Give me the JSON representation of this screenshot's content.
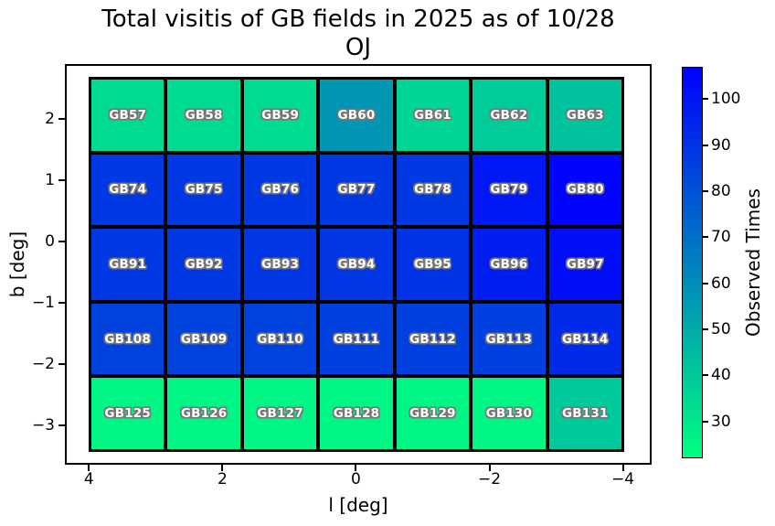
{
  "chart_data": {
    "type": "heatmap",
    "title_line1": "Total visitis of GB fields in 2025 as of 10/28",
    "title_line2": "OJ",
    "xlabel": "l [deg]",
    "ylabel": "b [deg]",
    "colorbar_label": "Observed Times",
    "colormap": "winter_r",
    "vmin": 22,
    "vmax": 107,
    "xlim": [
      4.36,
      -4.43
    ],
    "ylim": [
      2.9,
      -3.64
    ],
    "grid_l_extent": [
      4.0,
      -4.02
    ],
    "grid_b_extent": [
      2.69,
      -3.43
    ],
    "x_ticks": [
      4,
      2,
      0,
      -2,
      -4
    ],
    "x_tick_labels": [
      "4",
      "2",
      "0",
      "−2",
      "−4"
    ],
    "y_ticks": [
      2,
      1,
      0,
      -1,
      -2,
      -3
    ],
    "y_tick_labels": [
      "2",
      "1",
      "0",
      "−1",
      "−2",
      "−3"
    ],
    "colorbar_ticks": [
      30,
      40,
      50,
      60,
      70,
      80,
      90,
      100
    ],
    "legend_position": "right",
    "grid_on": false,
    "rows": [
      {
        "fields": [
          {
            "label": "GB57",
            "value": 34
          },
          {
            "label": "GB58",
            "value": 34
          },
          {
            "label": "GB59",
            "value": 34
          },
          {
            "label": "GB60",
            "value": 57
          },
          {
            "label": "GB61",
            "value": 36
          },
          {
            "label": "GB62",
            "value": 39
          },
          {
            "label": "GB63",
            "value": 42
          }
        ]
      },
      {
        "fields": [
          {
            "label": "GB74",
            "value": 88
          },
          {
            "label": "GB75",
            "value": 88
          },
          {
            "label": "GB76",
            "value": 88
          },
          {
            "label": "GB77",
            "value": 88
          },
          {
            "label": "GB78",
            "value": 88
          },
          {
            "label": "GB79",
            "value": 99
          },
          {
            "label": "GB80",
            "value": 106
          }
        ]
      },
      {
        "fields": [
          {
            "label": "GB91",
            "value": 88
          },
          {
            "label": "GB92",
            "value": 88
          },
          {
            "label": "GB93",
            "value": 89
          },
          {
            "label": "GB94",
            "value": 89
          },
          {
            "label": "GB95",
            "value": 90
          },
          {
            "label": "GB96",
            "value": 97
          },
          {
            "label": "GB97",
            "value": 102
          }
        ]
      },
      {
        "fields": [
          {
            "label": "GB108",
            "value": 85
          },
          {
            "label": "GB109",
            "value": 85
          },
          {
            "label": "GB110",
            "value": 85
          },
          {
            "label": "GB111",
            "value": 86
          },
          {
            "label": "GB112",
            "value": 86
          },
          {
            "label": "GB113",
            "value": 86
          },
          {
            "label": "GB114",
            "value": 93
          }
        ]
      },
      {
        "fields": [
          {
            "label": "GB125",
            "value": 25
          },
          {
            "label": "GB126",
            "value": 25
          },
          {
            "label": "GB127",
            "value": 25
          },
          {
            "label": "GB128",
            "value": 25
          },
          {
            "label": "GB129",
            "value": 25
          },
          {
            "label": "GB130",
            "value": 25
          },
          {
            "label": "GB131",
            "value": 40
          }
        ]
      }
    ]
  },
  "colors": {
    "background": "#ffffff",
    "cell_border": "#000000",
    "cell_text": "#ffffff",
    "cell_text_outline": "#767676",
    "cbar_bottom": "#00ff80",
    "cbar_top": "#0000ff",
    "axis_text": "#000000"
  }
}
